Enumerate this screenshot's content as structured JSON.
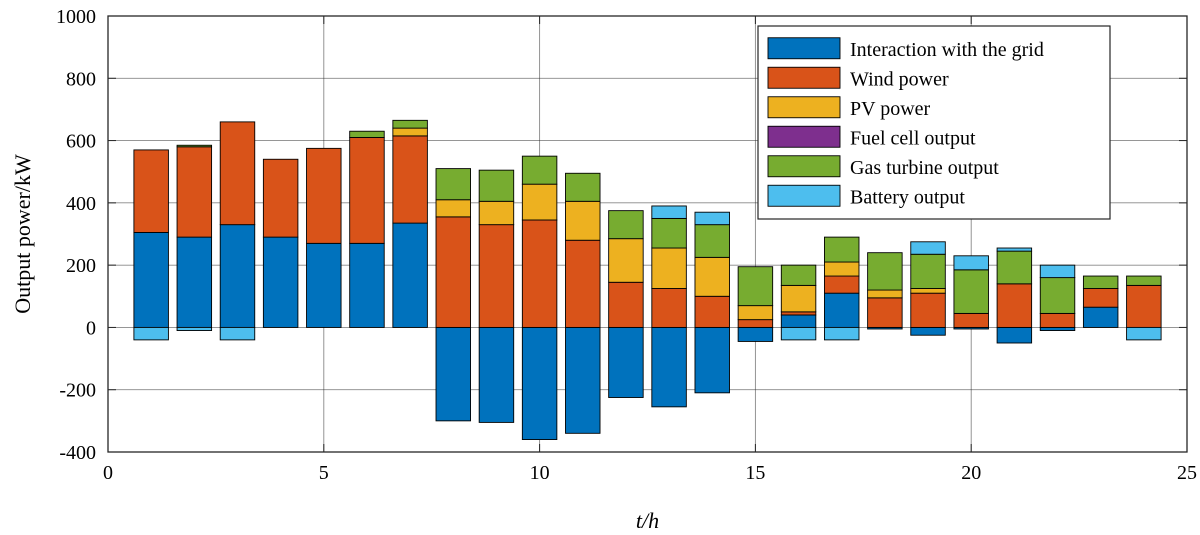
{
  "chart_data": {
    "type": "bar",
    "stacked": true,
    "title": "",
    "xlabel": "t/h",
    "ylabel": "Output power/kW",
    "xlim": [
      0,
      25
    ],
    "ylim": [
      -400,
      1000
    ],
    "grid": true,
    "legend_position": "top-right",
    "x_ticks": [
      0,
      5,
      10,
      15,
      20,
      25
    ],
    "y_ticks": [
      -400,
      -200,
      0,
      200,
      400,
      600,
      800,
      1000
    ],
    "x": [
      1,
      2,
      3,
      4,
      5,
      6,
      7,
      8,
      9,
      10,
      11,
      12,
      13,
      14,
      15,
      16,
      17,
      18,
      19,
      20,
      21,
      22,
      23,
      24
    ],
    "series": [
      {
        "name": "Interaction with the grid",
        "color": "#0072BD",
        "values": [
          305,
          290,
          330,
          290,
          270,
          270,
          335,
          -300,
          -305,
          -360,
          -340,
          -225,
          -255,
          -210,
          -45,
          40,
          110,
          -5,
          -25,
          -5,
          -50,
          -10,
          65,
          0
        ]
      },
      {
        "name": "Wind power",
        "color": "#D95319",
        "values": [
          265,
          290,
          330,
          250,
          305,
          340,
          280,
          355,
          330,
          345,
          280,
          145,
          125,
          100,
          25,
          10,
          55,
          95,
          110,
          45,
          140,
          45,
          60,
          135
        ]
      },
      {
        "name": "PV power",
        "color": "#EDB120",
        "values": [
          0,
          0,
          0,
          0,
          0,
          0,
          25,
          55,
          75,
          115,
          125,
          140,
          130,
          125,
          45,
          85,
          45,
          25,
          15,
          0,
          0,
          0,
          0,
          0
        ]
      },
      {
        "name": "Fuel cell output",
        "color": "#7E2F8E",
        "values": [
          0,
          0,
          0,
          0,
          0,
          0,
          0,
          0,
          0,
          0,
          0,
          0,
          0,
          0,
          0,
          0,
          0,
          0,
          0,
          0,
          0,
          0,
          0,
          0
        ]
      },
      {
        "name": "Gas turbine output",
        "color": "#77AC30",
        "values": [
          0,
          5,
          0,
          0,
          0,
          20,
          25,
          100,
          100,
          90,
          90,
          90,
          95,
          105,
          125,
          65,
          80,
          120,
          110,
          140,
          105,
          115,
          40,
          30
        ]
      },
      {
        "name": "Battery output",
        "color": "#4DBEEE",
        "values": [
          -40,
          -10,
          -40,
          0,
          0,
          0,
          0,
          0,
          0,
          0,
          0,
          0,
          40,
          40,
          0,
          -40,
          -40,
          0,
          40,
          45,
          10,
          40,
          0,
          -40
        ]
      }
    ]
  }
}
